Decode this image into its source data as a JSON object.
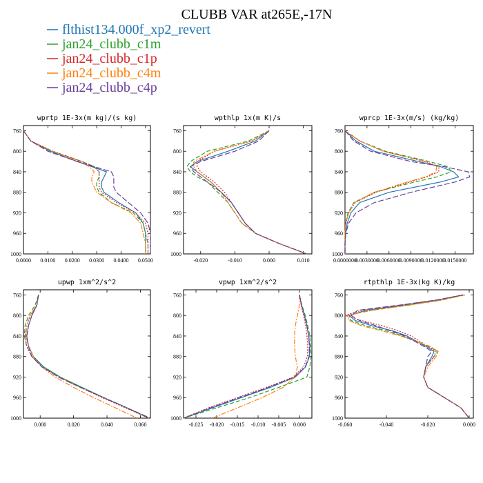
{
  "figure": {
    "title": "CLUBB VAR at265E,-17N",
    "legend": [
      {
        "name": "flthist134.000f_xp2_revert",
        "color": "#1f77b4",
        "dash": ""
      },
      {
        "name": "jan24_clubb_c1m",
        "color": "#2ca02c",
        "dash": "6,3"
      },
      {
        "name": "jan24_clubb_c1p",
        "color": "#d62728",
        "dash": "2,2"
      },
      {
        "name": "jan24_clubb_c4m",
        "color": "#ff7f0e",
        "dash": "7,2,2,2"
      },
      {
        "name": "jan24_clubb_c4p",
        "color": "#6a3d9a",
        "dash": "8,3"
      }
    ]
  },
  "chart_data": [
    {
      "type": "line",
      "title": "wprtp  1E-3x(m kg)/(s kg)",
      "xlim": [
        0,
        0.052
      ],
      "ylim": [
        1000,
        750
      ],
      "xticks": [
        0,
        0.01,
        0.02,
        0.03,
        0.04,
        0.05
      ],
      "xtick_labels": [
        "0.0000",
        "0.0100",
        "0.0200",
        "0.0300",
        "0.0400",
        "0.0500"
      ],
      "yticks": [
        760,
        800,
        840,
        880,
        920,
        960,
        1000
      ],
      "y": [
        760,
        780,
        800,
        820,
        830,
        840,
        850,
        860,
        870,
        880,
        900,
        920,
        940,
        960,
        980,
        1000
      ],
      "series": [
        {
          "name": "flthist134.000f_xp2_revert",
          "values": [
            0.0,
            0.003,
            0.011,
            0.022,
            0.028,
            0.034,
            0.033,
            0.032,
            0.032,
            0.033,
            0.039,
            0.046,
            0.049,
            0.05,
            0.05,
            0.05
          ]
        },
        {
          "name": "jan24_clubb_c1m",
          "values": [
            0.0,
            0.003,
            0.012,
            0.024,
            0.029,
            0.031,
            0.031,
            0.03,
            0.03,
            0.031,
            0.036,
            0.045,
            0.049,
            0.05,
            0.051,
            0.051
          ]
        },
        {
          "name": "jan24_clubb_c1p",
          "values": [
            0.0,
            0.003,
            0.012,
            0.024,
            0.029,
            0.031,
            0.031,
            0.031,
            0.031,
            0.032,
            0.038,
            0.046,
            0.05,
            0.051,
            0.051,
            0.051
          ]
        },
        {
          "name": "jan24_clubb_c4m",
          "values": [
            0.0,
            0.003,
            0.012,
            0.023,
            0.027,
            0.029,
            0.028,
            0.028,
            0.029,
            0.03,
            0.036,
            0.044,
            0.048,
            0.049,
            0.05,
            0.05
          ]
        },
        {
          "name": "jan24_clubb_c4p",
          "values": [
            0.0,
            0.003,
            0.01,
            0.022,
            0.029,
            0.036,
            0.037,
            0.037,
            0.037,
            0.038,
            0.043,
            0.048,
            0.051,
            0.052,
            0.052,
            0.052
          ]
        }
      ]
    },
    {
      "type": "line",
      "title": "wpthlp  1x(m K)/s",
      "xlim": [
        -0.025,
        0.0125
      ],
      "ylim": [
        1000,
        750
      ],
      "xticks": [
        -0.02,
        -0.01,
        0,
        0.01
      ],
      "xtick_labels": [
        "-0.020",
        "-0.010",
        "0.000",
        "0.010"
      ],
      "yticks": [
        760,
        800,
        840,
        880,
        920,
        960,
        1000
      ],
      "y": [
        760,
        780,
        800,
        820,
        830,
        840,
        850,
        860,
        880,
        900,
        920,
        940,
        960,
        980,
        1000
      ],
      "series": [
        {
          "name": "flthist134.000f_xp2_revert",
          "values": [
            0.0,
            -0.004,
            -0.012,
            -0.021,
            -0.023,
            -0.021,
            -0.019,
            -0.017,
            -0.014,
            -0.011,
            -0.009,
            -0.007,
            -0.004,
            0.003,
            0.011
          ]
        },
        {
          "name": "jan24_clubb_c1m",
          "values": [
            0.0,
            -0.006,
            -0.018,
            -0.023,
            -0.024,
            -0.023,
            -0.021,
            -0.018,
            -0.015,
            -0.012,
            -0.01,
            -0.008,
            -0.004,
            0.003,
            0.011
          ]
        },
        {
          "name": "jan24_clubb_c1p",
          "values": [
            0.0,
            -0.005,
            -0.016,
            -0.021,
            -0.021,
            -0.02,
            -0.018,
            -0.016,
            -0.013,
            -0.011,
            -0.009,
            -0.007,
            -0.004,
            0.003,
            0.011
          ]
        },
        {
          "name": "jan24_clubb_c4m",
          "values": [
            0.0,
            -0.005,
            -0.016,
            -0.022,
            -0.022,
            -0.021,
            -0.019,
            -0.017,
            -0.014,
            -0.012,
            -0.01,
            -0.008,
            -0.004,
            0.003,
            0.011
          ]
        },
        {
          "name": "jan24_clubb_c4p",
          "values": [
            0.0,
            -0.003,
            -0.01,
            -0.02,
            -0.023,
            -0.022,
            -0.02,
            -0.018,
            -0.014,
            -0.011,
            -0.009,
            -0.007,
            -0.004,
            0.003,
            0.011
          ]
        }
      ]
    },
    {
      "type": "line",
      "title": "wprcp  1E-3x(m/s) (kg/kg)",
      "xlim": [
        0,
        0.0175
      ],
      "ylim": [
        1000,
        750
      ],
      "xticks": [
        0,
        0.003,
        0.006,
        0.009,
        0.012,
        0.015
      ],
      "xtick_labels": [
        "0.0000000",
        "0.0030000",
        "0.0060000",
        "0.0090000",
        "0.0120000",
        "0.0150000"
      ],
      "yticks": [
        760,
        800,
        840,
        880,
        920,
        960,
        1000
      ],
      "y": [
        760,
        780,
        800,
        820,
        830,
        840,
        850,
        860,
        880,
        900,
        920,
        940,
        960,
        980,
        1000
      ],
      "series": [
        {
          "name": "flthist134.000f_xp2_revert",
          "values": [
            0.0,
            0.0015,
            0.004,
            0.01,
            0.013,
            0.0148,
            0.0155,
            0.013,
            0.006,
            0.002,
            0.0008,
            0.0003,
            0.0001,
            0.0,
            0.0
          ]
        },
        {
          "name": "jan24_clubb_c1m",
          "values": [
            0.0,
            0.002,
            0.0055,
            0.0115,
            0.014,
            0.0145,
            0.0125,
            0.0095,
            0.004,
            0.0012,
            0.0004,
            0.0001,
            0.0,
            0.0,
            0.0
          ]
        },
        {
          "name": "jan24_clubb_c1p",
          "values": [
            0.0,
            0.002,
            0.0052,
            0.011,
            0.0128,
            0.0128,
            0.0112,
            0.0088,
            0.0042,
            0.0014,
            0.0005,
            0.0001,
            0.0,
            0.0,
            0.0
          ]
        },
        {
          "name": "jan24_clubb_c4m",
          "values": [
            0.0,
            0.002,
            0.0052,
            0.0108,
            0.0125,
            0.0124,
            0.011,
            0.0085,
            0.004,
            0.0013,
            0.0005,
            0.0001,
            0.0,
            0.0,
            0.0
          ]
        },
        {
          "name": "jan24_clubb_c4p",
          "values": [
            0.0,
            0.0012,
            0.0035,
            0.009,
            0.0135,
            0.0168,
            0.017,
            0.015,
            0.009,
            0.004,
            0.0015,
            0.0005,
            0.0001,
            0.0,
            0.0
          ]
        }
      ]
    },
    {
      "type": "line",
      "title": "upwp  1xm^2/s^2",
      "xlim": [
        -0.01,
        0.066
      ],
      "ylim": [
        1000,
        750
      ],
      "xticks": [
        0,
        0.02,
        0.04,
        0.06
      ],
      "xtick_labels": [
        "0.000",
        "0.020",
        "0.040",
        "0.060"
      ],
      "yticks": [
        760,
        800,
        840,
        880,
        920,
        960,
        1000
      ],
      "y": [
        760,
        780,
        800,
        820,
        840,
        860,
        880,
        900,
        920,
        940,
        960,
        980,
        1000
      ],
      "series": [
        {
          "name": "flthist134.000f_xp2_revert",
          "values": [
            -0.001,
            -0.002,
            -0.005,
            -0.007,
            -0.008,
            -0.007,
            -0.004,
            0.002,
            0.012,
            0.025,
            0.038,
            0.052,
            0.065
          ]
        },
        {
          "name": "jan24_clubb_c1m",
          "values": [
            -0.001,
            -0.003,
            -0.007,
            -0.009,
            -0.0095,
            -0.008,
            -0.005,
            0.002,
            0.012,
            0.025,
            0.038,
            0.052,
            0.065
          ]
        },
        {
          "name": "jan24_clubb_c1p",
          "values": [
            -0.001,
            -0.002,
            -0.006,
            -0.008,
            -0.009,
            -0.008,
            -0.005,
            0.001,
            0.011,
            0.024,
            0.037,
            0.051,
            0.065
          ]
        },
        {
          "name": "jan24_clubb_c4m",
          "values": [
            -0.001,
            -0.002,
            -0.006,
            -0.008,
            -0.0085,
            -0.007,
            -0.004,
            0.001,
            0.009,
            0.02,
            0.032,
            0.045,
            0.058
          ]
        },
        {
          "name": "jan24_clubb_c4p",
          "values": [
            -0.001,
            -0.002,
            -0.005,
            -0.007,
            -0.008,
            -0.007,
            -0.005,
            0.001,
            0.011,
            0.024,
            0.038,
            0.052,
            0.066
          ]
        }
      ]
    },
    {
      "type": "line",
      "title": "vpwp  1xm^2/s^2",
      "xlim": [
        -0.028,
        0.003
      ],
      "ylim": [
        1000,
        750
      ],
      "xticks": [
        -0.025,
        -0.02,
        -0.015,
        -0.01,
        -0.005,
        0
      ],
      "xtick_labels": [
        "-0.025",
        "-0.020",
        "-0.015",
        "-0.010",
        "-0.005",
        "0.000"
      ],
      "yticks": [
        760,
        800,
        840,
        880,
        920,
        960,
        1000
      ],
      "y": [
        760,
        780,
        800,
        820,
        840,
        860,
        880,
        900,
        920,
        940,
        960,
        980,
        1000
      ],
      "series": [
        {
          "name": "flthist134.000f_xp2_revert",
          "values": [
            0.0,
            0.0005,
            0.0012,
            0.0018,
            0.0022,
            0.0025,
            0.0024,
            0.0015,
            -0.001,
            -0.007,
            -0.014,
            -0.021,
            -0.028
          ]
        },
        {
          "name": "jan24_clubb_c1m",
          "values": [
            0.0,
            0.0006,
            0.0014,
            0.002,
            0.0025,
            0.0027,
            0.0028,
            0.0025,
            0.0018,
            -0.005,
            -0.012,
            -0.02,
            -0.028
          ]
        },
        {
          "name": "jan24_clubb_c1p",
          "values": [
            0.0,
            0.0004,
            0.001,
            0.0015,
            0.0018,
            0.002,
            0.0019,
            0.001,
            -0.0015,
            -0.008,
            -0.015,
            -0.022,
            -0.028
          ]
        },
        {
          "name": "jan24_clubb_c4m",
          "values": [
            0.0,
            0.0,
            -0.0005,
            -0.001,
            -0.0012,
            -0.0012,
            -0.001,
            -0.0005,
            -0.001,
            -0.004,
            -0.009,
            -0.015,
            -0.021
          ]
        },
        {
          "name": "jan24_clubb_c4p",
          "values": [
            0.0,
            0.0005,
            0.0012,
            0.0018,
            0.0022,
            0.0024,
            0.0023,
            0.0014,
            -0.0012,
            -0.0075,
            -0.0145,
            -0.0215,
            -0.028
          ]
        }
      ]
    },
    {
      "type": "line",
      "title": "rtpthlp  1E-3x(kg K)/kg",
      "xlim": [
        -0.06,
        0.002
      ],
      "ylim": [
        1000,
        750
      ],
      "xticks": [
        -0.06,
        -0.04,
        -0.02,
        0
      ],
      "xtick_labels": [
        "-0.060",
        "-0.040",
        "-0.020",
        "0.000"
      ],
      "yticks": [
        760,
        800,
        840,
        880,
        920,
        960,
        1000
      ],
      "y": [
        760,
        770,
        780,
        790,
        800,
        810,
        820,
        830,
        840,
        860,
        870,
        880,
        900,
        920,
        940,
        960,
        980,
        1000
      ],
      "series": [
        {
          "name": "flthist134.000f_xp2_revert",
          "values": [
            -0.003,
            -0.015,
            -0.032,
            -0.05,
            -0.058,
            -0.055,
            -0.047,
            -0.037,
            -0.03,
            -0.021,
            -0.017,
            -0.018,
            -0.021,
            -0.022,
            -0.02,
            -0.012,
            -0.004,
            0.0
          ]
        },
        {
          "name": "jan24_clubb_c1m",
          "values": [
            -0.002,
            -0.014,
            -0.03,
            -0.048,
            -0.059,
            -0.057,
            -0.05,
            -0.04,
            -0.032,
            -0.02,
            -0.015,
            -0.017,
            -0.021,
            -0.022,
            -0.02,
            -0.012,
            -0.004,
            0.0
          ]
        },
        {
          "name": "jan24_clubb_c1p",
          "values": [
            -0.003,
            -0.016,
            -0.033,
            -0.052,
            -0.06,
            -0.052,
            -0.042,
            -0.034,
            -0.028,
            -0.02,
            -0.016,
            -0.017,
            -0.021,
            -0.022,
            -0.02,
            -0.012,
            -0.004,
            0.0
          ]
        },
        {
          "name": "jan24_clubb_c4m",
          "values": [
            -0.002,
            -0.013,
            -0.029,
            -0.047,
            -0.059,
            -0.058,
            -0.052,
            -0.042,
            -0.033,
            -0.019,
            -0.015,
            -0.016,
            -0.02,
            -0.022,
            -0.02,
            -0.012,
            -0.004,
            0.0
          ]
        },
        {
          "name": "jan24_clubb_c4p",
          "values": [
            -0.003,
            -0.016,
            -0.034,
            -0.054,
            -0.057,
            -0.053,
            -0.045,
            -0.038,
            -0.031,
            -0.022,
            -0.018,
            -0.02,
            -0.021,
            -0.022,
            -0.02,
            -0.012,
            -0.004,
            0.0
          ]
        }
      ]
    }
  ]
}
